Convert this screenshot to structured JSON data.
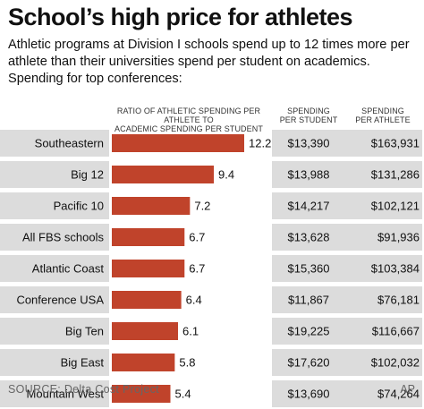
{
  "header": {
    "title": "School’s high price for athletes",
    "subtitle": "Athletic programs at Division I schools spend up to 12 times more per athlete than their universities spend per student on academics. Spending for top conferences:"
  },
  "columns": {
    "ratio_head_line1": "RATIO OF ATHLETIC SPENDING PER ATHLETE TO",
    "ratio_head_line2": "ACADEMIC SPENDING PER STUDENT",
    "student_head_line1": "SPENDING",
    "student_head_line2": "PER STUDENT",
    "athlete_head_line1": "SPENDING",
    "athlete_head_line2": "PER ATHLETE"
  },
  "colors": {
    "bar": "#c0432b",
    "row_band": "#dcdcdc"
  },
  "chart_data": {
    "type": "bar",
    "orientation": "horizontal",
    "categories": [
      "Southeastern",
      "Big 12",
      "Pacific 10",
      "All FBS schools",
      "Atlantic Coast",
      "Conference USA",
      "Big Ten",
      "Big East",
      "Mountain West"
    ],
    "values": [
      12.2,
      9.4,
      7.2,
      6.7,
      6.7,
      6.4,
      6.1,
      5.8,
      5.4
    ],
    "value_labels": [
      "12.2",
      "9.4",
      "7.2",
      "6.7",
      "6.7",
      "6.4",
      "6.1",
      "5.8",
      "5.4"
    ],
    "spending_per_student": [
      "$13,390",
      "$13,988",
      "$14,217",
      "$13,628",
      "$15,360",
      "$11,867",
      "$19,225",
      "$17,620",
      "$13,690"
    ],
    "spending_per_athlete": [
      "$163,931",
      "$131,286",
      "$102,121",
      "$91,936",
      "$103,384",
      "$76,181",
      "$116,667",
      "$102,032",
      "$74,264"
    ],
    "xlim": [
      0,
      12.2
    ],
    "grid": false,
    "legend": "none"
  },
  "footer": {
    "source": "SOURCE: Delta Cost Project",
    "credit": "AP"
  }
}
